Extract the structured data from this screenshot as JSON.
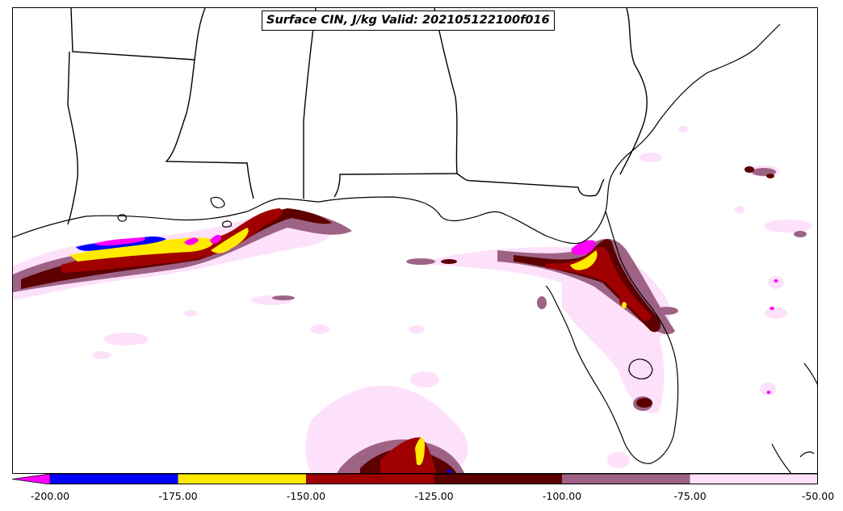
{
  "title": "Surface CIN, J/kg Valid: 202105122100f016",
  "colorbar": {
    "extend": "min",
    "under_color": "#ff00ff",
    "bins": [
      {
        "from": -200,
        "to": -175,
        "color": "#0000ff"
      },
      {
        "from": -175,
        "to": -150,
        "color": "#ffea00"
      },
      {
        "from": -150,
        "to": -125,
        "color": "#a10000"
      },
      {
        "from": -125,
        "to": -100,
        "color": "#5c0000"
      },
      {
        "from": -100,
        "to": -75,
        "color": "#9e6384"
      },
      {
        "from": -75,
        "to": -50,
        "color": "#fde1fb"
      }
    ],
    "ticks": [
      "-200.00",
      "-175.00",
      "-150.00",
      "-125.00",
      "-100.00",
      "-75.00",
      "-50.00"
    ]
  },
  "map": {
    "region": "Gulf of Mexico / Southeastern US",
    "boundaries": [
      "coastlines",
      "state borders"
    ]
  }
}
